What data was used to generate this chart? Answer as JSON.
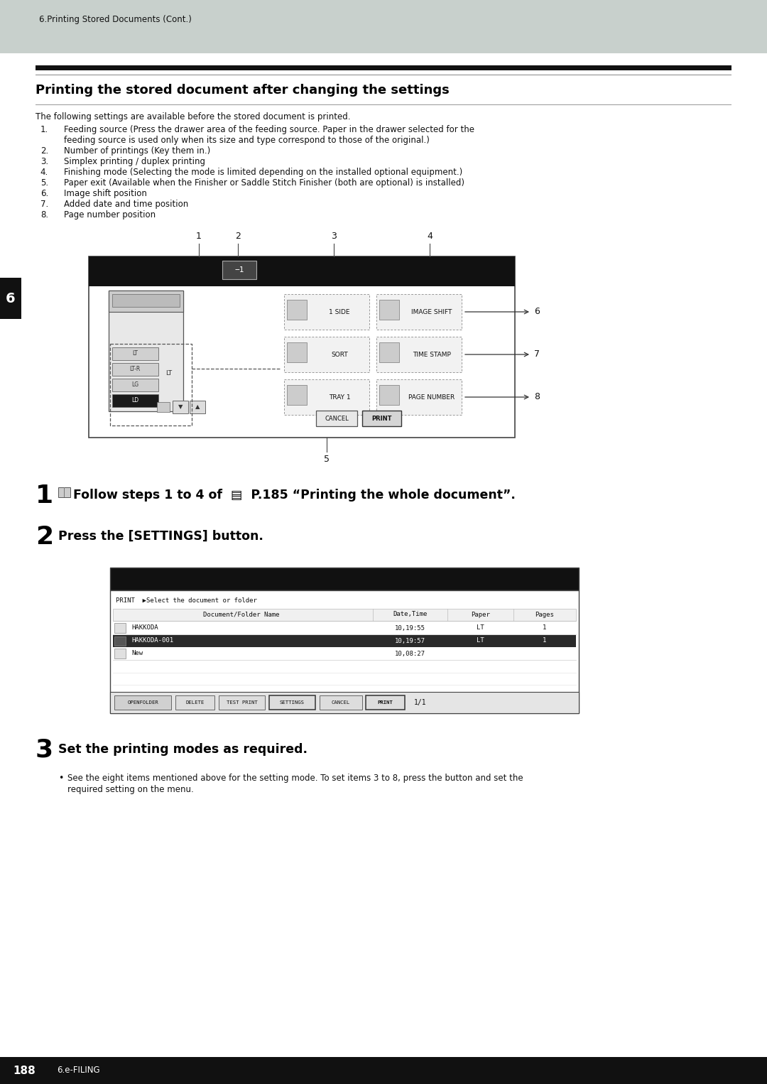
{
  "page_bg": "#c8d0cc",
  "content_bg": "#ffffff",
  "header_text": "6.Printing Stored Documents (Cont.)",
  "title": "Printing the stored document after changing the settings",
  "intro_text": "The following settings are available before the stored document is printed.",
  "numbered_items": [
    [
      "Feeding source (Press the drawer area of the feeding source. Paper in the drawer selected for the",
      "feeding source is used only when its size and type correspond to those of the original.)"
    ],
    [
      "Number of printings (Key them in.)"
    ],
    [
      "Simplex printing / duplex printing"
    ],
    [
      "Finishing mode (Selecting the mode is limited depending on the installed optional equipment.)"
    ],
    [
      "Paper exit (Available when the Finisher or Saddle Stitch Finisher (both are optional) is installed)"
    ],
    [
      "Image shift position"
    ],
    [
      "Added date and time position"
    ],
    [
      "Page number position"
    ]
  ],
  "step1_text": "Follow steps 1 to 4 of  ▤  P.185 “Printing the whole document”.",
  "step2_text": "Press the [SETTINGS] button.",
  "step3_text": "Set the printing modes as required.",
  "step3_bullet": "See the eight items mentioned above for the setting mode. To set items 3 to 8, press the button and set the required setting on the menu.",
  "footer_page": "188",
  "footer_text": "6.e-FILING",
  "chapter_tab": "6"
}
